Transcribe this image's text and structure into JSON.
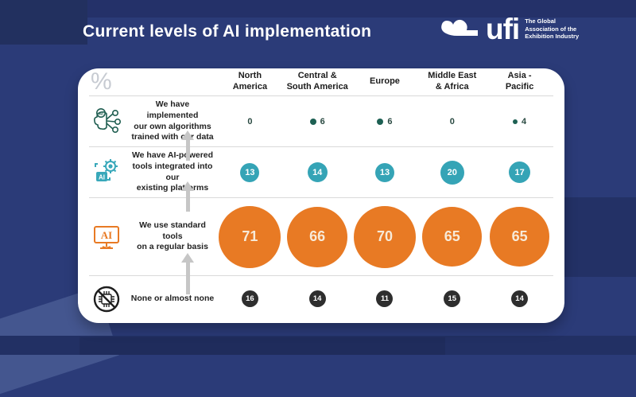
{
  "header": {
    "title": "Current levels of AI implementation"
  },
  "logo": {
    "wordmark": "ufi",
    "tagline": "The Global\nAssociation of the\nExhibition Industry"
  },
  "chart_data": {
    "type": "table",
    "title": "Current levels of AI implementation",
    "unit_symbol": "%",
    "legend_position": "none",
    "columns": [
      "North\nAmerica",
      "Central &\nSouth America",
      "Europe",
      "Middle East\n& Africa",
      "Asia -\nPacific"
    ],
    "rows": [
      {
        "label": "We have implemented\nour own algorithms\ntrained with our data",
        "icon": "ai-brain-network-icon",
        "style": "teal-dot",
        "values": [
          0,
          6,
          6,
          0,
          4
        ]
      },
      {
        "label": "We have AI-powered\ntools integrated into our\nexisting platforms",
        "icon": "ai-gear-icon",
        "style": "teal-bubble",
        "values": [
          13,
          14,
          13,
          20,
          17
        ]
      },
      {
        "label": "We use standard tools\non a regular basis",
        "icon": "ai-monitor-icon",
        "style": "orange-bubble",
        "values": [
          71,
          66,
          70,
          65,
          65
        ]
      },
      {
        "label": "None or almost none",
        "icon": "no-ai-icon",
        "style": "dark-badge",
        "values": [
          16,
          14,
          11,
          15,
          14
        ]
      }
    ],
    "colors": {
      "background": "#2b3b78",
      "card": "#ffffff",
      "teal_dot": "#1d6053",
      "teal_bubble": "#35a4b6",
      "orange_bubble": "#e87a24",
      "dark_badge": "#2e2e2e",
      "arrow": "#c6c6c6",
      "title_text": "#ffffff"
    }
  }
}
